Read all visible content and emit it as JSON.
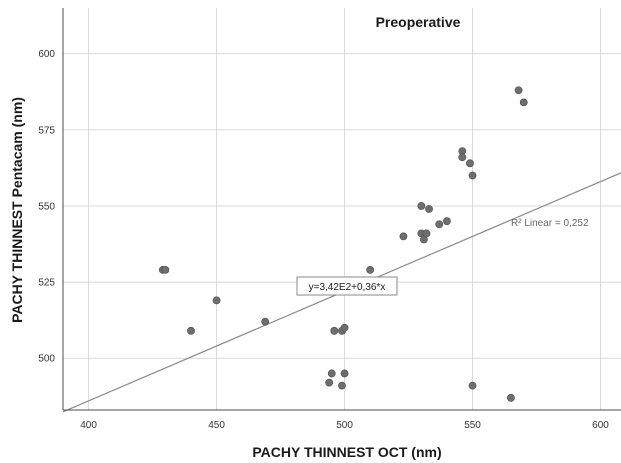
{
  "chart_data": {
    "type": "scatter",
    "title": "Preoperative",
    "xlabel": "PACHY THINNEST OCT (nm)",
    "ylabel": "PACHY THINNEST Pentacam (nm)",
    "xlim": [
      390,
      608
    ],
    "ylim": [
      483,
      615
    ],
    "xticks": [
      400,
      450,
      500,
      550,
      600
    ],
    "yticks": [
      500,
      525,
      550,
      575,
      600
    ],
    "grid": true,
    "points": [
      {
        "x": 429,
        "y": 529
      },
      {
        "x": 430,
        "y": 529
      },
      {
        "x": 440,
        "y": 509
      },
      {
        "x": 450,
        "y": 519
      },
      {
        "x": 469,
        "y": 512
      },
      {
        "x": 494,
        "y": 492
      },
      {
        "x": 495,
        "y": 495
      },
      {
        "x": 496,
        "y": 509
      },
      {
        "x": 499,
        "y": 491
      },
      {
        "x": 499,
        "y": 509
      },
      {
        "x": 500,
        "y": 510
      },
      {
        "x": 500,
        "y": 495
      },
      {
        "x": 507,
        "y": 525
      },
      {
        "x": 509,
        "y": 525
      },
      {
        "x": 510,
        "y": 529
      },
      {
        "x": 523,
        "y": 540
      },
      {
        "x": 530,
        "y": 550
      },
      {
        "x": 530,
        "y": 541
      },
      {
        "x": 531,
        "y": 539
      },
      {
        "x": 532,
        "y": 541
      },
      {
        "x": 533,
        "y": 549
      },
      {
        "x": 537,
        "y": 544
      },
      {
        "x": 540,
        "y": 545
      },
      {
        "x": 546,
        "y": 568
      },
      {
        "x": 546,
        "y": 566
      },
      {
        "x": 549,
        "y": 564
      },
      {
        "x": 550,
        "y": 560
      },
      {
        "x": 550,
        "y": 491
      },
      {
        "x": 565,
        "y": 487
      },
      {
        "x": 568,
        "y": 588
      },
      {
        "x": 570,
        "y": 584
      }
    ],
    "fit_line": {
      "intercept": 342,
      "slope": 0.36
    },
    "fit_label": "R² Linear = 0,252",
    "equation": "y=3,42E2+0,36*x",
    "point_color": "#6e6e6e",
    "line_color": "#8a8a8a"
  }
}
